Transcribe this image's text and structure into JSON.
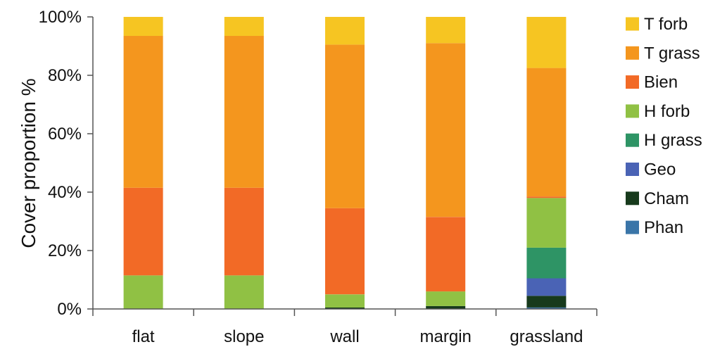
{
  "chart_data": {
    "type": "bar",
    "stacked": true,
    "normalized": true,
    "ylabel": "Cover proportion %",
    "xlabel": "",
    "ylim": [
      0,
      100
    ],
    "yticks": [
      "0%",
      "20%",
      "40%",
      "60%",
      "80%",
      "100%"
    ],
    "categories": [
      "flat",
      "slope",
      "wall",
      "margin",
      "grassland"
    ],
    "series": [
      {
        "name": "Phan",
        "color": "#3a75a8",
        "values": [
          0,
          0,
          0,
          0,
          0.5
        ]
      },
      {
        "name": "Cham",
        "color": "#173a1c",
        "values": [
          0,
          0,
          0.5,
          1,
          4
        ]
      },
      {
        "name": "Geo",
        "color": "#4a63b5",
        "values": [
          0,
          0,
          0,
          0,
          6
        ]
      },
      {
        "name": "H grass",
        "color": "#2e9465",
        "values": [
          0,
          0,
          0,
          0,
          10.5
        ]
      },
      {
        "name": "H forb",
        "color": "#90c144",
        "values": [
          11.5,
          11.5,
          4.5,
          5,
          17
        ]
      },
      {
        "name": "Bien",
        "color": "#f26a26",
        "values": [
          30,
          30,
          29.5,
          25.5,
          0.5
        ]
      },
      {
        "name": "T grass",
        "color": "#f4961e",
        "values": [
          52,
          52,
          56,
          59.5,
          44
        ]
      },
      {
        "name": "T forb",
        "color": "#f6c522",
        "values": [
          6.5,
          6.5,
          9.5,
          9,
          17.5
        ]
      }
    ],
    "grid": false,
    "legend_position": "right"
  }
}
